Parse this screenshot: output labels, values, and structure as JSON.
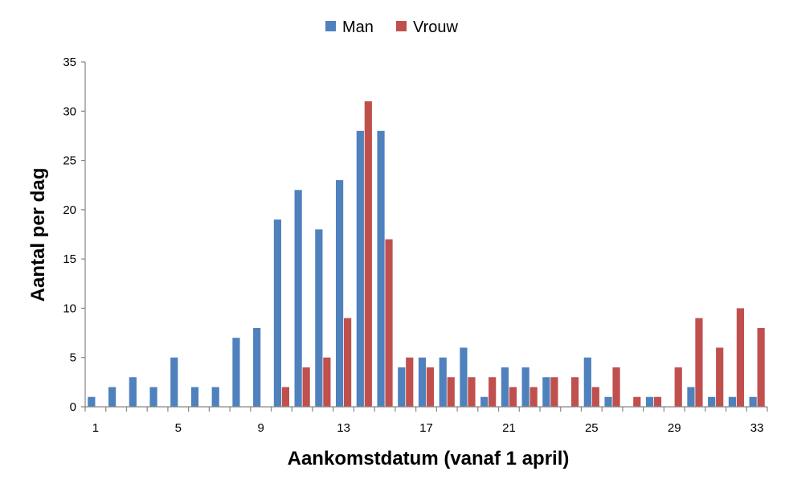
{
  "chart_data": {
    "type": "bar",
    "title": "",
    "xlabel": "Aankomstdatum (vanaf 1 april)",
    "ylabel": "Aantal per dag",
    "ylim": [
      0,
      35
    ],
    "yticks": [
      "0",
      "5",
      "10",
      "15",
      "20",
      "25",
      "30",
      "35"
    ],
    "xtick_labels": [
      "1",
      "5",
      "9",
      "13",
      "17",
      "21",
      "25",
      "29",
      "33"
    ],
    "grid": false,
    "legend_position": "top-center",
    "categories": [
      1,
      2,
      3,
      4,
      5,
      6,
      7,
      8,
      9,
      10,
      11,
      12,
      13,
      14,
      15,
      16,
      17,
      18,
      19,
      20,
      21,
      22,
      23,
      24,
      25,
      26,
      27,
      28,
      29,
      30,
      31,
      32,
      33
    ],
    "series": [
      {
        "name": "Man",
        "color": "#4F81BD",
        "values": [
          1,
          2,
          3,
          2,
          5,
          2,
          2,
          7,
          8,
          19,
          22,
          18,
          23,
          28,
          28,
          4,
          5,
          5,
          6,
          1,
          4,
          4,
          3,
          0,
          5,
          1,
          0,
          1,
          0,
          2,
          1,
          1,
          1
        ]
      },
      {
        "name": "Vrouw",
        "color": "#C0504D",
        "values": [
          0,
          0,
          0,
          0,
          0,
          0,
          0,
          0,
          0,
          2,
          4,
          5,
          9,
          31,
          17,
          5,
          4,
          3,
          3,
          3,
          2,
          2,
          3,
          3,
          2,
          4,
          1,
          1,
          4,
          9,
          6,
          10,
          8
        ]
      }
    ]
  }
}
